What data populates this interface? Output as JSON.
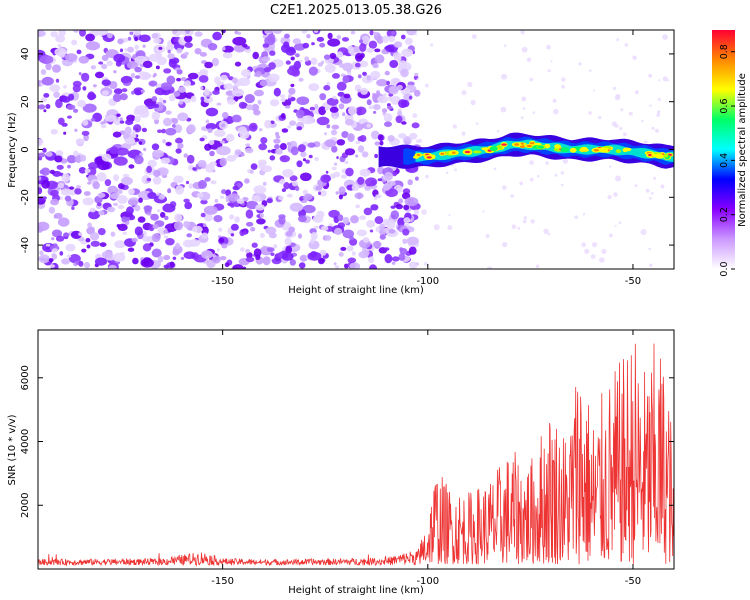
{
  "figure": {
    "title": "C2E1.2025.013.05.38.G26"
  },
  "chart_data": [
    {
      "type": "heatmap",
      "xlabel": "Height of straight line (km)",
      "ylabel": "Frequency (Hz)",
      "xlim": [
        -195,
        -40
      ],
      "ylim": [
        -50,
        50
      ],
      "xticks": [
        -150,
        -100,
        -50
      ],
      "yticks": [
        -40,
        -20,
        0,
        20,
        40
      ],
      "colorbar": {
        "label": "Normalized spectral amplitude",
        "range": [
          0,
          0.88
        ],
        "ticks": [
          "0.0",
          "0.2",
          "0.4",
          "0.6",
          "0.8"
        ],
        "colormap": [
          "#ffffff",
          "#cc99ff",
          "#8800ff",
          "#0000ff",
          "#00ffff",
          "#00ff66",
          "#ffff00",
          "#ff8800",
          "#ff0033"
        ]
      },
      "noise_region": {
        "x": [
          -195,
          -104
        ],
        "y": [
          -50,
          50
        ],
        "level": "low",
        "color": "#8a2be2"
      },
      "signal_band": {
        "x": [
          -104,
          -40
        ],
        "center_hz": [
          [
            -112,
            -3
          ],
          [
            -104,
            -3
          ],
          [
            -100,
            -3
          ],
          [
            -95,
            -2
          ],
          [
            -90,
            -1
          ],
          [
            -85,
            0
          ],
          [
            -80,
            2
          ],
          [
            -75,
            2
          ],
          [
            -70,
            1
          ],
          [
            -65,
            0
          ],
          [
            -60,
            0
          ],
          [
            -55,
            0
          ],
          [
            -50,
            -1
          ],
          [
            -45,
            -2
          ],
          [
            -42,
            -3
          ]
        ],
        "half_width_hz": 3,
        "peak_amplitude": 0.88
      },
      "grid": false
    },
    {
      "type": "line",
      "xlabel": "Height of straight line (km)",
      "ylabel": "SNR (10 * v/v)",
      "xlim": [
        -195,
        -40
      ],
      "ylim": [
        0,
        7500
      ],
      "xticks": [
        -150,
        -100,
        -50
      ],
      "yticks": [
        2000,
        4000,
        6000
      ],
      "series": [
        {
          "color": "#ee3333",
          "x": [
            -195,
            -180,
            -165,
            -155,
            -150,
            -140,
            -125,
            -110,
            -102,
            -100,
            -98,
            -95,
            -90,
            -85,
            -80,
            -75,
            -70,
            -66,
            -63,
            -60,
            -55,
            -52,
            -50,
            -47,
            -44,
            -41,
            -40
          ],
          "y": [
            250,
            260,
            270,
            500,
            280,
            240,
            260,
            300,
            600,
            1700,
            3100,
            2500,
            2300,
            2700,
            3600,
            3300,
            5100,
            4100,
            7100,
            4700,
            6100,
            6600,
            7500,
            6200,
            7300,
            5500,
            1800
          ]
        }
      ],
      "grid": false
    }
  ]
}
